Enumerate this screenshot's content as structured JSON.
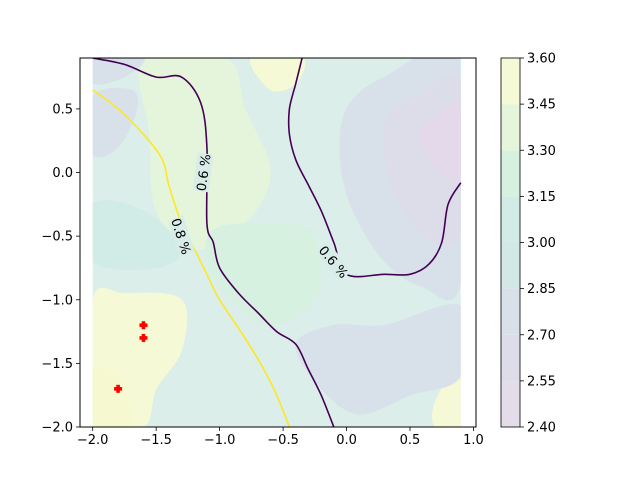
{
  "chart_data": {
    "type": "heatmap",
    "subtype": "filled-contour",
    "title": "",
    "xlabel": "",
    "ylabel": "",
    "xlim": [
      -2.1,
      1.02
    ],
    "ylim": [
      -2.0,
      0.9
    ],
    "x_ticks": [
      -2.0,
      -1.5,
      -1.0,
      -0.5,
      0.0,
      0.5,
      1.0
    ],
    "x_tick_labels": [
      "−2.0",
      "−1.5",
      "−1.0",
      "−0.5",
      "0.0",
      "0.5",
      "1.0"
    ],
    "y_ticks": [
      0.5,
      0.0,
      -0.5,
      -1.0,
      -1.5,
      -2.0
    ],
    "y_tick_labels": [
      "0.5",
      "0.0",
      "−0.5",
      "−1.0",
      "−1.5",
      "−2.0"
    ],
    "grid": false,
    "colormap": "viridis",
    "fill_alpha": 0.2,
    "data_extent": {
      "x": [
        -2.0,
        0.9
      ],
      "y": [
        -2.0,
        0.9
      ]
    },
    "colorbar": {
      "levels": [
        2.4,
        2.55,
        2.7,
        2.85,
        3.0,
        3.15,
        3.3,
        3.45,
        3.6
      ],
      "tick_labels": [
        "2.40",
        "2.55",
        "2.70",
        "2.85",
        "3.00",
        "3.15",
        "3.30",
        "3.45",
        "3.60"
      ],
      "colors": [
        "#e5dcea",
        "#dcdde9",
        "#d8e1e9",
        "#d3e7e7",
        "#d1ebe6",
        "#d7f1e1",
        "#e5f5dc",
        "#f5f9d5"
      ]
    },
    "fill_regions": [
      {
        "level": 3.3,
        "color": "#e5f5dc",
        "points": [
          [
            -1.6,
            0.9
          ],
          [
            -0.95,
            0.9
          ],
          [
            -0.8,
            0.5
          ],
          [
            -0.6,
            0.0
          ],
          [
            -0.8,
            -0.4
          ],
          [
            -1.2,
            -0.6
          ],
          [
            -1.5,
            -0.3
          ],
          [
            -1.55,
            0.3
          ]
        ]
      },
      {
        "level": 3.45,
        "color": "#f5f9d5",
        "points": [
          [
            -0.75,
            0.9
          ],
          [
            -0.35,
            0.9
          ],
          [
            -0.4,
            0.7
          ],
          [
            -0.6,
            0.65
          ]
        ]
      },
      {
        "level": 3.45,
        "color": "#f5f9d5",
        "points": [
          [
            -2.0,
            -1.0
          ],
          [
            -1.75,
            -0.95
          ],
          [
            -1.3,
            -1.0
          ],
          [
            -1.3,
            -1.4
          ],
          [
            -1.5,
            -1.7
          ],
          [
            -1.6,
            -2.0
          ],
          [
            -2.0,
            -2.0
          ]
        ]
      },
      {
        "level": 3.6,
        "color": "#f6f8d0",
        "points": [
          [
            -2.0,
            -1.55
          ],
          [
            -1.8,
            -1.6
          ],
          [
            -1.7,
            -1.9
          ],
          [
            -1.75,
            -2.0
          ],
          [
            -2.0,
            -2.0
          ]
        ]
      },
      {
        "level": 3.45,
        "color": "#f5f9d5",
        "points": [
          [
            0.7,
            -1.8
          ],
          [
            0.9,
            -1.5
          ],
          [
            0.9,
            -2.0
          ],
          [
            0.7,
            -2.0
          ]
        ]
      },
      {
        "level": 3.0,
        "color": "#d1ebe6",
        "points": [
          [
            -2.0,
            -0.25
          ],
          [
            -1.6,
            -0.3
          ],
          [
            -1.3,
            -0.6
          ],
          [
            -1.5,
            -0.75
          ],
          [
            -2.0,
            -0.7
          ]
        ]
      },
      {
        "level": 2.85,
        "color": "#d8e1e9",
        "points": [
          [
            0.0,
            0.5
          ],
          [
            0.3,
            0.75
          ],
          [
            0.9,
            0.9
          ],
          [
            0.9,
            -0.85
          ],
          [
            0.6,
            -0.9
          ],
          [
            0.3,
            -0.7
          ],
          [
            0.05,
            -0.3
          ],
          [
            -0.05,
            0.1
          ]
        ]
      },
      {
        "level": 2.7,
        "color": "#dcdde9",
        "points": [
          [
            0.3,
            0.4
          ],
          [
            0.55,
            0.6
          ],
          [
            0.9,
            0.7
          ],
          [
            0.9,
            -0.45
          ],
          [
            0.6,
            -0.5
          ],
          [
            0.35,
            -0.1
          ]
        ]
      },
      {
        "level": 2.55,
        "color": "#e3d9ea",
        "points": [
          [
            0.6,
            0.35
          ],
          [
            0.85,
            0.55
          ],
          [
            0.9,
            0.45
          ],
          [
            0.9,
            -0.05
          ],
          [
            0.7,
            0.05
          ],
          [
            0.6,
            0.2
          ]
        ]
      },
      {
        "level": 2.85,
        "color": "#d8e1e9",
        "points": [
          [
            -2.0,
            0.9
          ],
          [
            -1.6,
            0.9
          ],
          [
            -1.75,
            0.75
          ],
          [
            -2.0,
            0.7
          ]
        ]
      },
      {
        "level": 2.85,
        "color": "#d8e1e9",
        "points": [
          [
            -2.0,
            0.15
          ],
          [
            -1.8,
            0.2
          ],
          [
            -1.65,
            0.5
          ],
          [
            -1.7,
            0.65
          ],
          [
            -2.0,
            0.6
          ]
        ]
      },
      {
        "level": 2.85,
        "color": "#d8e1e9",
        "points": [
          [
            -0.4,
            -1.35
          ],
          [
            -0.1,
            -1.2
          ],
          [
            0.3,
            -1.2
          ],
          [
            0.9,
            -1.05
          ],
          [
            0.9,
            -1.6
          ],
          [
            0.5,
            -1.75
          ],
          [
            0.1,
            -1.9
          ],
          [
            -0.2,
            -1.7
          ]
        ]
      },
      {
        "level": 3.15,
        "color": "#d7f1e1",
        "points": [
          [
            -1.05,
            -0.45
          ],
          [
            -0.7,
            -0.4
          ],
          [
            -0.3,
            -0.45
          ],
          [
            -0.2,
            -0.8
          ],
          [
            -0.3,
            -1.05
          ],
          [
            -0.6,
            -1.2
          ],
          [
            -0.9,
            -1.0
          ],
          [
            -1.1,
            -0.7
          ]
        ]
      }
    ],
    "contour_lines": [
      {
        "label": "0.6 %",
        "color": "#440154",
        "x": [
          -2.0,
          -1.75,
          -1.5,
          -1.3,
          -1.15,
          -1.1,
          -1.1,
          -1.05,
          -1.0,
          -0.85,
          -0.7,
          -0.55,
          -0.4,
          -0.3,
          -0.2,
          -0.1
        ],
        "y": [
          0.9,
          0.85,
          0.75,
          0.75,
          0.55,
          0.2,
          -0.4,
          -0.55,
          -0.75,
          -0.95,
          -1.1,
          -1.25,
          -1.35,
          -1.55,
          -1.75,
          -2.0
        ]
      },
      {
        "label": "0.6 %",
        "color": "#440154",
        "x": [
          -0.35,
          -0.4,
          -0.45,
          -0.45,
          -0.4,
          -0.3,
          -0.2,
          -0.1,
          0.0,
          0.3,
          0.5,
          0.65,
          0.75,
          0.8,
          0.9
        ],
        "y": [
          0.9,
          0.7,
          0.5,
          0.3,
          0.1,
          -0.1,
          -0.3,
          -0.55,
          -0.8,
          -0.8,
          -0.8,
          -0.72,
          -0.55,
          -0.25,
          -0.08
        ]
      },
      {
        "label": "0.8 %",
        "color": "#fde725",
        "x": [
          -2.0,
          -1.8,
          -1.6,
          -1.45,
          -1.4,
          -1.3,
          -1.2,
          -1.1,
          -1.0,
          -0.8,
          -0.65,
          -0.55,
          -0.45
        ],
        "y": [
          0.65,
          0.5,
          0.3,
          0.1,
          -0.1,
          -0.4,
          -0.6,
          -0.8,
          -1.0,
          -1.3,
          -1.55,
          -1.75,
          -2.0
        ]
      }
    ],
    "contour_label_positions": [
      {
        "text": "0.6 %",
        "color": "#440154",
        "x": -1.13,
        "y": 0.0,
        "rotate": -82
      },
      {
        "text": "0.6 %",
        "color": "#440154",
        "x": -0.1,
        "y": -0.7,
        "rotate": 50
      },
      {
        "text": "0.8 %",
        "color": "#fde725",
        "x": -1.3,
        "y": -0.5,
        "rotate": 72
      }
    ],
    "markers": {
      "color": "#ff0000",
      "shape": "plus",
      "points": [
        [
          -1.6,
          -1.2
        ],
        [
          -1.6,
          -1.3
        ],
        [
          -1.8,
          -1.7
        ]
      ]
    }
  }
}
